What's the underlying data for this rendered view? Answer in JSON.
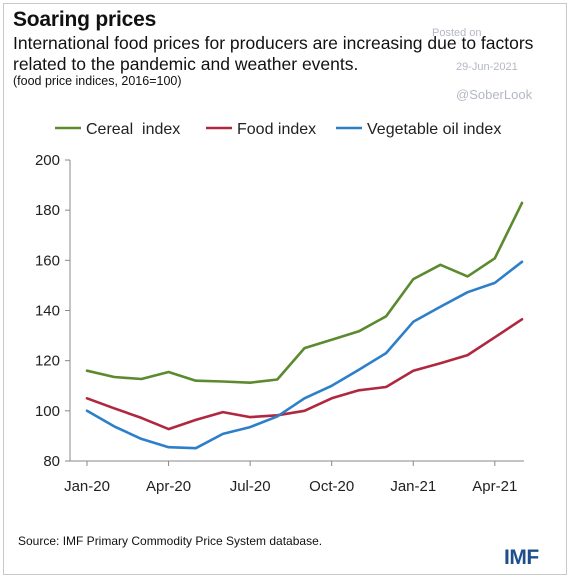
{
  "header": {
    "title": "Soaring prices",
    "subtitle": "International food prices for producers are increasing due to factors related to the pandemic and weather events.",
    "note": "(food price indices, 2016=100)"
  },
  "watermark": {
    "posted": "Posted on",
    "date": "29-Jun-2021",
    "handle": "@SoberLook"
  },
  "footer": {
    "source": "Source: IMF Primary Commodity Price System database.",
    "logo": "IMF"
  },
  "chart_data": {
    "type": "line",
    "x": [
      "Jan-20",
      "Feb-20",
      "Mar-20",
      "Apr-20",
      "May-20",
      "Jun-20",
      "Jul-20",
      "Aug-20",
      "Sep-20",
      "Oct-20",
      "Nov-20",
      "Dec-20",
      "Jan-21",
      "Feb-21",
      "Mar-21",
      "Apr-21",
      "May-21"
    ],
    "x_tick_labels": [
      "Jan-20",
      "Apr-20",
      "Jul-20",
      "Oct-20",
      "Jan-21",
      "Apr-21"
    ],
    "x_tick_indices": [
      0,
      3,
      6,
      9,
      12,
      15
    ],
    "ylim": [
      80,
      200
    ],
    "y_ticks": [
      80,
      100,
      120,
      140,
      160,
      180,
      200
    ],
    "legend_position": "top",
    "grid": false,
    "series": [
      {
        "name": "Cereal  index",
        "color": "#5b8a2f",
        "values": [
          116,
          113.5,
          112.7,
          115.5,
          112,
          111.7,
          111.2,
          112.5,
          125,
          128.3,
          131.7,
          137.7,
          152.5,
          158.2,
          153.6,
          160.8,
          182.9
        ]
      },
      {
        "name": "Food index",
        "color": "#b0283f",
        "values": [
          105,
          101,
          97.2,
          92.7,
          96.4,
          99.5,
          97.5,
          98.2,
          100,
          105,
          108.2,
          109.5,
          116,
          119,
          122.2,
          129.3,
          136.5
        ]
      },
      {
        "name": "Vegetable oil index",
        "color": "#2d7fc9",
        "values": [
          100,
          93.8,
          88.8,
          85.5,
          85.1,
          90.8,
          93.5,
          97.8,
          105,
          110,
          116.4,
          123,
          135.5,
          141.5,
          147.3,
          151,
          159.4
        ]
      }
    ]
  }
}
